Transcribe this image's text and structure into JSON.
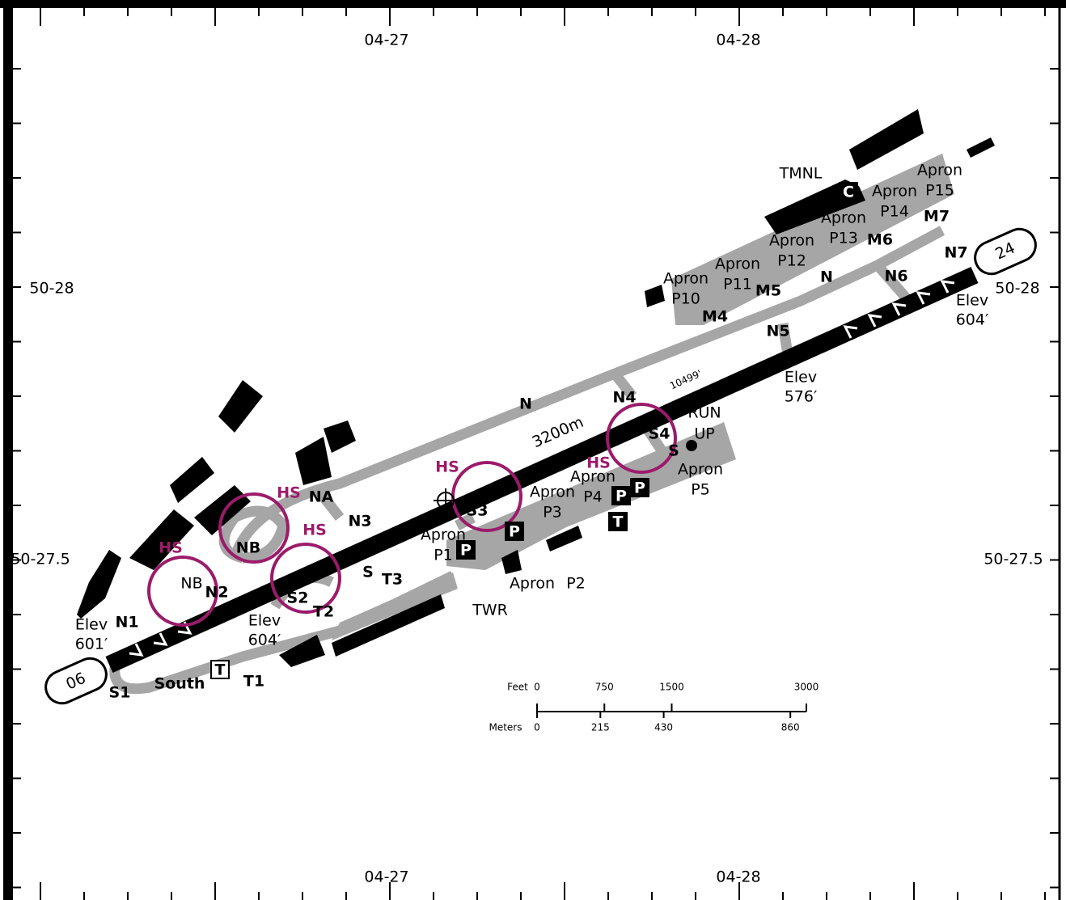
{
  "grid": {
    "top": [
      "04-27",
      "04-28"
    ],
    "bottom": [
      "04-27",
      "04-28"
    ],
    "left": [
      "50-28",
      "50-27.5"
    ],
    "right": [
      "50-28",
      "50-27.5"
    ]
  },
  "runway": {
    "ends": [
      "06",
      "24"
    ],
    "length": "3200m",
    "length_ft": "10499'"
  },
  "elevations": [
    {
      "label": "Elev",
      "value": "601′"
    },
    {
      "label": "Elev",
      "value": "604′"
    },
    {
      "label": "Elev",
      "value": "576′"
    },
    {
      "label": "Elev",
      "value": "604′"
    }
  ],
  "taxiways": [
    "N",
    "N",
    "NA",
    "NB",
    "NB",
    "N1",
    "N2",
    "N3",
    "N4",
    "N5",
    "N6",
    "N7",
    "M4",
    "M5",
    "M6",
    "M7",
    "S",
    "S",
    "S1",
    "S2",
    "S3",
    "S4",
    "T1",
    "T2",
    "T3",
    "South"
  ],
  "hot_spots": [
    "HS",
    "HS",
    "HS",
    "HS",
    "HS"
  ],
  "aprons": [
    {
      "label": "Apron",
      "id": "P1"
    },
    {
      "label": "Apron",
      "id": "P2"
    },
    {
      "label": "Apron",
      "id": "P3"
    },
    {
      "label": "Apron",
      "id": "P4"
    },
    {
      "label": "Apron",
      "id": "P5"
    },
    {
      "label": "Apron",
      "id": "P10"
    },
    {
      "label": "Apron",
      "id": "P11"
    },
    {
      "label": "Apron",
      "id": "P12"
    },
    {
      "label": "Apron",
      "id": "P13"
    },
    {
      "label": "Apron",
      "id": "P14"
    },
    {
      "label": "Apron",
      "id": "P15"
    }
  ],
  "facilities": {
    "terminal": "TMNL",
    "tower": "TWR",
    "run_up": [
      "RUN",
      "UP"
    ]
  },
  "symbols": [
    "C",
    "P",
    "P",
    "P",
    "P",
    "T",
    "T"
  ],
  "scale": {
    "feet_label": "Feet",
    "feet": [
      0,
      750,
      1500,
      3000
    ],
    "meters_label": "Meters",
    "meters": [
      0,
      215,
      430,
      860
    ]
  }
}
